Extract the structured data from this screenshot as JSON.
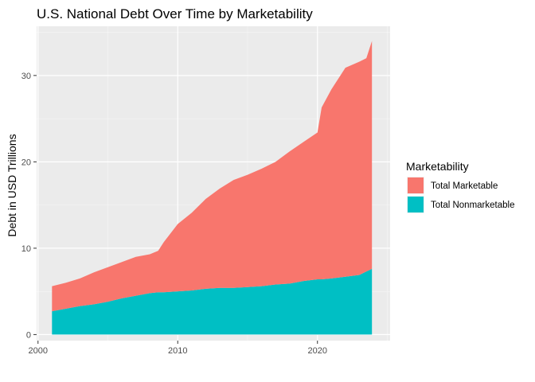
{
  "chart_data": {
    "type": "area",
    "stacked": true,
    "title": "U.S. National Debt Over Time by Marketability",
    "xlabel": "",
    "ylabel": "Debt in USD Trillions",
    "xlim": [
      1999.9,
      2025.2
    ],
    "ylim": [
      -0.7,
      35.7
    ],
    "x_ticks": [
      2000,
      2010,
      2020
    ],
    "y_ticks": [
      0,
      10,
      20,
      30
    ],
    "grid": true,
    "legend": {
      "title": "Marketability",
      "position": "right"
    },
    "x": [
      2001.0,
      2002.0,
      2003.0,
      2004.0,
      2005.0,
      2006.0,
      2007.0,
      2008.0,
      2008.6,
      2009.0,
      2010.0,
      2011.0,
      2012.0,
      2013.0,
      2014.0,
      2015.0,
      2016.0,
      2017.0,
      2018.0,
      2019.0,
      2020.0,
      2020.3,
      2021.0,
      2022.0,
      2023.0,
      2023.5,
      2023.9
    ],
    "series": [
      {
        "name": "Total Nonmarketable",
        "color": "#00BFC4",
        "values": [
          2.7,
          3.0,
          3.3,
          3.5,
          3.8,
          4.2,
          4.5,
          4.8,
          4.9,
          4.9,
          5.0,
          5.1,
          5.3,
          5.4,
          5.4,
          5.5,
          5.6,
          5.8,
          5.9,
          6.2,
          6.4,
          6.4,
          6.5,
          6.7,
          6.9,
          7.3,
          7.6
        ]
      },
      {
        "name": "Total Marketable",
        "color": "#F8766D",
        "values": [
          2.9,
          3.0,
          3.2,
          3.7,
          4.0,
          4.2,
          4.5,
          4.5,
          4.8,
          5.8,
          7.8,
          9.0,
          10.4,
          11.5,
          12.5,
          13.0,
          13.6,
          14.2,
          15.3,
          16.1,
          17.0,
          19.9,
          21.9,
          24.2,
          24.7,
          24.7,
          26.4
        ]
      }
    ]
  }
}
